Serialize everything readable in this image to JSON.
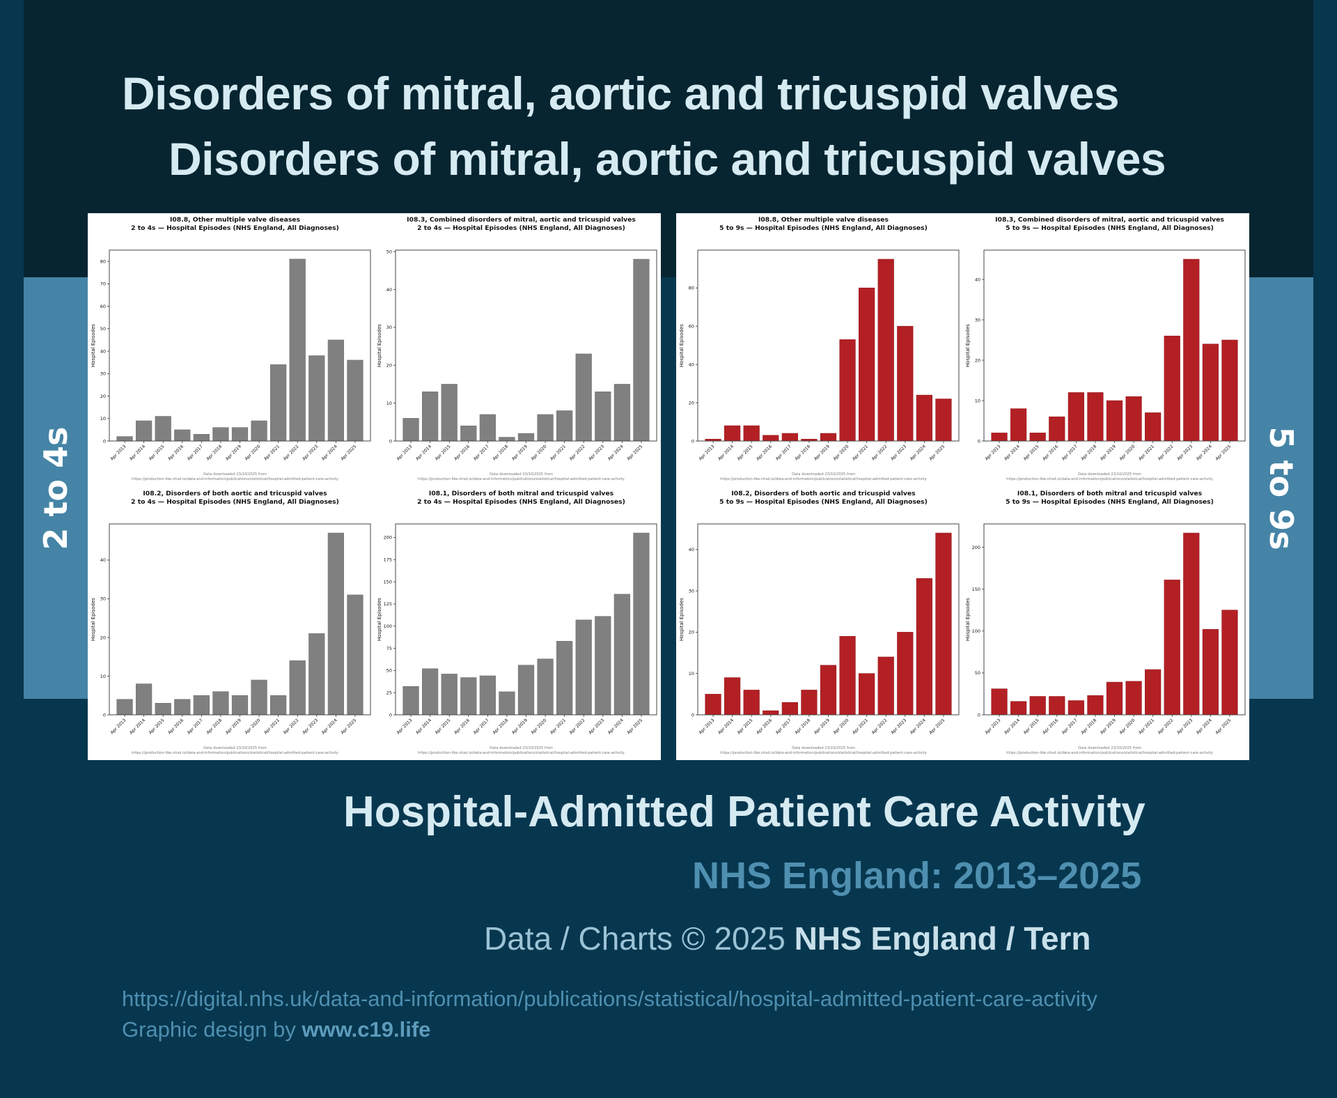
{
  "header": {
    "title_line1": "Disorders of mitral, aortic and tricuspid valves",
    "title_line2": "Disorders of mitral, aortic and tricuspid valves"
  },
  "bands": {
    "left_label": "2 to 4s",
    "right_label": "5 to 9s",
    "color": "#4584a6"
  },
  "footer": {
    "heading": "Hospital-Admitted Patient Care Activity",
    "subheading": "NHS England: 2013–2025",
    "credit_prefix": "Data / Charts © 2025 ",
    "credit_bold": "NHS England / Tern",
    "source_url": "https://digital.nhs.uk/data-and-information/publications/statistical/hospital-admitted-patient-care-activity",
    "design_prefix": "Graphic design by ",
    "design_bold": "www.c19.life"
  },
  "chart_note": {
    "line1": "Data downloaded 23/10/2025 from",
    "line2": "https://production-like.nhsd.io/data-and-information/publications/statistical/hospital-admitted-patient-care-activity"
  },
  "colors": {
    "age_2_4": "#808080",
    "age_5_9": "#b22024"
  },
  "chart_data": [
    {
      "type": "bar",
      "panel": "left",
      "position": "top-left",
      "title": "I08.8,  Other multiple valve diseases",
      "subtitle": "2 to 4s — Hospital Episodes (NHS England, All Diagnoses)",
      "xlabel": "",
      "ylabel": "Hospital Episodes",
      "categories": [
        "Apr 2013",
        "Apr 2014",
        "Apr 2015",
        "Apr 2016",
        "Apr 2017",
        "Apr 2018",
        "Apr 2019",
        "Apr 2020",
        "Apr 2021",
        "Apr 2022",
        "Apr 2023",
        "Apr 2024",
        "Apr 2025"
      ],
      "values": [
        2,
        9,
        11,
        5,
        3,
        6,
        6,
        9,
        34,
        81,
        38,
        45,
        36
      ],
      "yticks": [
        0,
        10,
        20,
        30,
        40,
        50,
        60,
        70,
        80
      ],
      "ylim": [
        0,
        85
      ],
      "color": "#808080",
      "grid": false
    },
    {
      "type": "bar",
      "panel": "left",
      "position": "top-right",
      "title": "I08.3,  Combined disorders of mitral, aortic and tricuspid valves",
      "subtitle": "2 to 4s — Hospital Episodes (NHS England, All Diagnoses)",
      "xlabel": "",
      "ylabel": "Hospital Episodes",
      "categories": [
        "Apr 2013",
        "Apr 2014",
        "Apr 2015",
        "Apr 2016",
        "Apr 2017",
        "Apr 2018",
        "Apr 2019",
        "Apr 2020",
        "Apr 2021",
        "Apr 2022",
        "Apr 2023",
        "Apr 2024",
        "Apr 2025"
      ],
      "values": [
        6,
        13,
        15,
        4,
        7,
        1,
        2,
        7,
        8,
        23,
        13,
        15,
        48
      ],
      "yticks": [
        0,
        10,
        20,
        30,
        40,
        50
      ],
      "ylim": [
        0,
        50.4
      ],
      "color": "#808080",
      "grid": false
    },
    {
      "type": "bar",
      "panel": "left",
      "position": "bottom-left",
      "title": "I08.2,  Disorders of both aortic and tricuspid valves",
      "subtitle": "2 to 4s — Hospital Episodes (NHS England, All Diagnoses)",
      "xlabel": "",
      "ylabel": "Hospital Episodes",
      "categories": [
        "Apr 2013",
        "Apr 2014",
        "Apr 2015",
        "Apr 2016",
        "Apr 2017",
        "Apr 2018",
        "Apr 2019",
        "Apr 2020",
        "Apr 2021",
        "Apr 2022",
        "Apr 2023",
        "Apr 2024",
        "Apr 2025"
      ],
      "values": [
        4,
        8,
        3,
        4,
        5,
        6,
        5,
        9,
        5,
        14,
        21,
        47,
        31
      ],
      "yticks": [
        0,
        10,
        20,
        30,
        40
      ],
      "ylim": [
        0,
        49.35
      ],
      "color": "#808080",
      "grid": false
    },
    {
      "type": "bar",
      "panel": "left",
      "position": "bottom-right",
      "title": "I08.1,  Disorders of both mitral and tricuspid valves",
      "subtitle": "2 to 4s — Hospital Episodes (NHS England, All Diagnoses)",
      "xlabel": "",
      "ylabel": "Hospital Episodes",
      "categories": [
        "Apr 2013",
        "Apr 2014",
        "Apr 2015",
        "Apr 2016",
        "Apr 2017",
        "Apr 2018",
        "Apr 2019",
        "Apr 2020",
        "Apr 2021",
        "Apr 2022",
        "Apr 2023",
        "Apr 2024",
        "Apr 2025"
      ],
      "values": [
        32,
        52,
        46,
        42,
        44,
        26,
        56,
        63,
        83,
        107,
        111,
        136,
        205
      ],
      "yticks": [
        0,
        25,
        50,
        75,
        100,
        125,
        150,
        175,
        200
      ],
      "ylim": [
        0,
        215.25
      ],
      "color": "#808080",
      "grid": false
    },
    {
      "type": "bar",
      "panel": "right",
      "position": "top-left",
      "title": "I08.8,  Other multiple valve diseases",
      "subtitle": "5 to 9s — Hospital Episodes (NHS England, All Diagnoses)",
      "xlabel": "",
      "ylabel": "Hospital Episodes",
      "categories": [
        "Apr 2013",
        "Apr 2014",
        "Apr 2015",
        "Apr 2016",
        "Apr 2017",
        "Apr 2018",
        "Apr 2019",
        "Apr 2020",
        "Apr 2021",
        "Apr 2022",
        "Apr 2023",
        "Apr 2024",
        "Apr 2025"
      ],
      "values": [
        1,
        8,
        8,
        3,
        4,
        1,
        4,
        53,
        80,
        95,
        60,
        24,
        22
      ],
      "yticks": [
        0,
        20,
        40,
        60,
        80
      ],
      "ylim": [
        0,
        99.75
      ],
      "color": "#b22024",
      "grid": false
    },
    {
      "type": "bar",
      "panel": "right",
      "position": "top-right",
      "title": "I08.3,  Combined disorders of mitral, aortic and tricuspid valves",
      "subtitle": "5 to 9s — Hospital Episodes (NHS England, All Diagnoses)",
      "xlabel": "",
      "ylabel": "Hospital Episodes",
      "categories": [
        "Apr 2013",
        "Apr 2014",
        "Apr 2015",
        "Apr 2016",
        "Apr 2017",
        "Apr 2018",
        "Apr 2019",
        "Apr 2020",
        "Apr 2021",
        "Apr 2022",
        "Apr 2023",
        "Apr 2024",
        "Apr 2025"
      ],
      "values": [
        2,
        8,
        2,
        6,
        12,
        12,
        10,
        11,
        7,
        26,
        45,
        24,
        25
      ],
      "yticks": [
        0,
        10,
        20,
        30,
        40
      ],
      "ylim": [
        0,
        47.25
      ],
      "color": "#b22024",
      "grid": false
    },
    {
      "type": "bar",
      "panel": "right",
      "position": "bottom-left",
      "title": "I08.2,  Disorders of both aortic and tricuspid valves",
      "subtitle": "5 to 9s — Hospital Episodes (NHS England, All Diagnoses)",
      "xlabel": "",
      "ylabel": "Hospital Episodes",
      "categories": [
        "Apr 2013",
        "Apr 2014",
        "Apr 2015",
        "Apr 2016",
        "Apr 2017",
        "Apr 2018",
        "Apr 2019",
        "Apr 2020",
        "Apr 2021",
        "Apr 2022",
        "Apr 2023",
        "Apr 2024",
        "Apr 2025"
      ],
      "values": [
        5,
        9,
        6,
        1,
        3,
        6,
        12,
        19,
        10,
        14,
        20,
        33,
        44
      ],
      "yticks": [
        0,
        10,
        20,
        30,
        40
      ],
      "ylim": [
        0,
        46.2
      ],
      "color": "#b22024",
      "grid": false
    },
    {
      "type": "bar",
      "panel": "right",
      "position": "bottom-right",
      "title": "I08.1,  Disorders of both mitral and tricuspid valves",
      "subtitle": "5 to 9s — Hospital Episodes (NHS England, All Diagnoses)",
      "xlabel": "",
      "ylabel": "Hospital Episodes",
      "categories": [
        "Apr 2013",
        "Apr 2014",
        "Apr 2015",
        "Apr 2016",
        "Apr 2017",
        "Apr 2018",
        "Apr 2019",
        "Apr 2020",
        "Apr 2021",
        "Apr 2022",
        "Apr 2023",
        "Apr 2024",
        "Apr 2025"
      ],
      "values": [
        31,
        16,
        22,
        22,
        17,
        23,
        39,
        40,
        54,
        161,
        217,
        102,
        125
      ],
      "yticks": [
        0,
        50,
        100,
        150,
        200
      ],
      "ylim": [
        0,
        227.85
      ],
      "color": "#b22024",
      "grid": false
    }
  ]
}
